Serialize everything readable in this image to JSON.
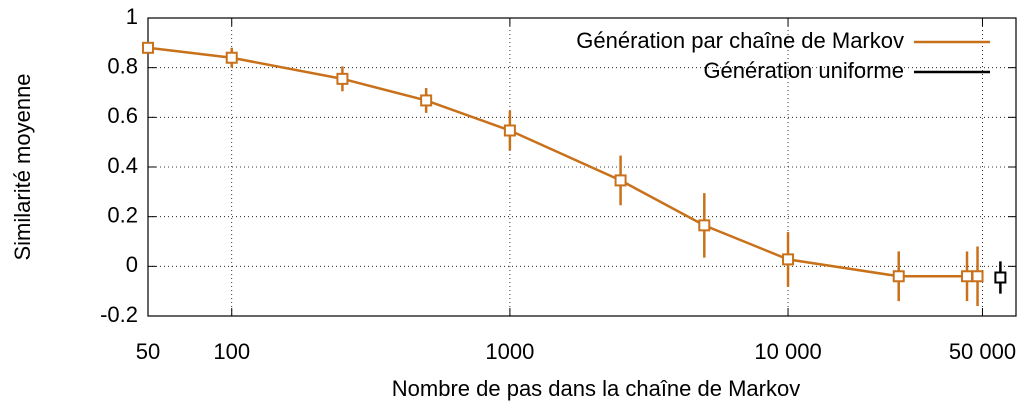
{
  "chart_data": {
    "type": "line",
    "xlabel": "Nombre de pas dans la chaîne de Markov",
    "ylabel": "Similarité moyenne",
    "xscale": "log",
    "xlim": [
      50,
      66000
    ],
    "ylim": [
      -0.2,
      1
    ],
    "xticks": [
      50,
      100,
      1000,
      {
        "value": 10000,
        "label": "10 000"
      },
      {
        "value": 50000,
        "label": "50 000"
      }
    ],
    "yticks": [
      -0.2,
      0,
      0.2,
      0.4,
      0.6,
      0.8,
      1
    ],
    "grid": true,
    "legend": "upper right",
    "series": [
      {
        "name": "Génération par chaîne de Markov",
        "color": "#c8711a",
        "x": [
          50,
          100,
          250,
          500,
          1000,
          2500,
          5000,
          10000,
          25000,
          44000,
          48000
        ],
        "values": [
          0.88,
          0.84,
          0.755,
          0.668,
          0.547,
          0.346,
          0.165,
          0.028,
          -0.04,
          -0.04,
          -0.04
        ],
        "errors": [
          0.01,
          0.04,
          0.05,
          0.05,
          0.08,
          0.1,
          0.13,
          0.11,
          0.1,
          0.1,
          0.12
        ]
      },
      {
        "name": "Génération uniforme",
        "color": "#000000",
        "x": [
          58000
        ],
        "values": [
          -0.045
        ],
        "errors": [
          0.065
        ]
      }
    ]
  }
}
